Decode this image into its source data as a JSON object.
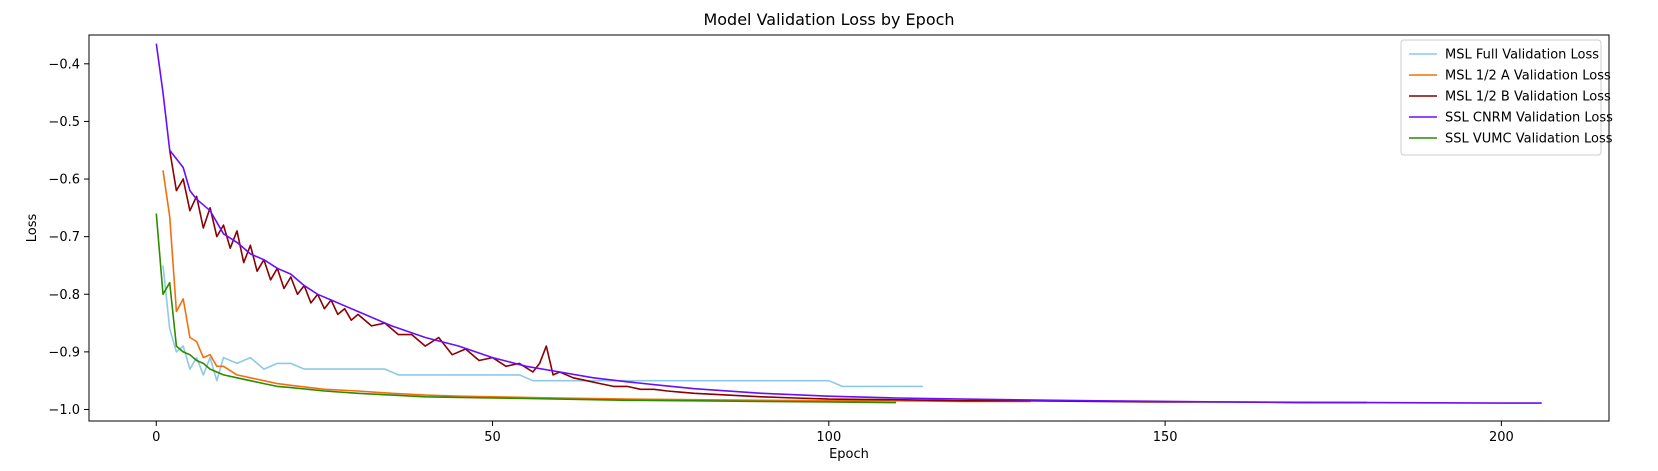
{
  "chart_data": {
    "type": "line",
    "title": "Model Validation Loss by Epoch",
    "xlabel": "Epoch",
    "ylabel": "Loss",
    "xlim": [
      -10,
      216
    ],
    "ylim": [
      -1.02,
      -0.35
    ],
    "xticks": [
      0,
      50,
      100,
      150,
      200
    ],
    "yticks": [
      -1.0,
      -0.9,
      -0.8,
      -0.7,
      -0.6,
      -0.5,
      -0.4
    ],
    "xtick_labels": [
      "0",
      "50",
      "100",
      "150",
      "200"
    ],
    "ytick_labels": [
      "−1.0",
      "−0.9",
      "−0.8",
      "−0.7",
      "−0.6",
      "−0.5",
      "−0.4"
    ],
    "grid": false,
    "legend_position": "top-right",
    "series": [
      {
        "name": "MSL Full Validation Loss",
        "color": "#8ecae6",
        "x": [
          1,
          2,
          3,
          4,
          5,
          6,
          7,
          8,
          9,
          10,
          12,
          14,
          16,
          18,
          20,
          22,
          24,
          26,
          28,
          30,
          32,
          34,
          36,
          38,
          40,
          42,
          44,
          46,
          48,
          50,
          52,
          54,
          56,
          58,
          60,
          62,
          64,
          66,
          68,
          70,
          72,
          74,
          76,
          78,
          80,
          82,
          84,
          86,
          88,
          90,
          92,
          94,
          96,
          98,
          100,
          102,
          104,
          106,
          108,
          110,
          112,
          114
        ],
        "values": [
          -0.75,
          -0.86,
          -0.9,
          -0.89,
          -0.93,
          -0.91,
          -0.94,
          -0.91,
          -0.95,
          -0.91,
          -0.92,
          -0.91,
          -0.93,
          -0.92,
          -0.92,
          -0.93,
          -0.93,
          -0.93,
          -0.93,
          -0.93,
          -0.93,
          -0.93,
          -0.94,
          -0.94,
          -0.94,
          -0.94,
          -0.94,
          -0.94,
          -0.94,
          -0.94,
          -0.94,
          -0.94,
          -0.95,
          -0.95,
          -0.95,
          -0.95,
          -0.95,
          -0.95,
          -0.95,
          -0.95,
          -0.95,
          -0.95,
          -0.95,
          -0.95,
          -0.95,
          -0.95,
          -0.95,
          -0.95,
          -0.95,
          -0.95,
          -0.95,
          -0.95,
          -0.95,
          -0.95,
          -0.95,
          -0.96,
          -0.96,
          -0.96,
          -0.96,
          -0.96,
          -0.96,
          -0.96
        ]
      },
      {
        "name": "MSL 1/2 A Validation Loss",
        "color": "#f07010",
        "x": [
          1,
          2,
          3,
          4,
          5,
          6,
          7,
          8,
          9,
          10,
          12,
          14,
          16,
          18,
          20,
          25,
          30,
          35,
          40,
          45,
          50,
          55,
          60,
          70,
          80,
          90,
          100,
          110,
          120,
          130
        ],
        "values": [
          -0.585,
          -0.665,
          -0.83,
          -0.808,
          -0.875,
          -0.882,
          -0.91,
          -0.905,
          -0.925,
          -0.925,
          -0.94,
          -0.945,
          -0.95,
          -0.955,
          -0.958,
          -0.965,
          -0.968,
          -0.972,
          -0.975,
          -0.977,
          -0.978,
          -0.979,
          -0.98,
          -0.982,
          -0.983,
          -0.984,
          -0.985,
          -0.985,
          -0.986,
          -0.986
        ]
      },
      {
        "name": "MSL 1/2 B Validation Loss",
        "color": "#8b0000",
        "x": [
          2,
          3,
          4,
          5,
          6,
          7,
          8,
          9,
          10,
          11,
          12,
          13,
          14,
          15,
          16,
          17,
          18,
          19,
          20,
          21,
          22,
          23,
          24,
          25,
          26,
          27,
          28,
          29,
          30,
          32,
          34,
          36,
          38,
          40,
          42,
          44,
          46,
          48,
          50,
          52,
          54,
          56,
          57,
          58,
          59,
          60,
          62,
          64,
          66,
          68,
          70,
          72,
          74,
          76,
          78,
          80,
          85,
          90,
          95,
          100,
          110,
          120,
          130,
          140,
          150,
          160,
          170,
          180
        ],
        "values": [
          -0.55,
          -0.62,
          -0.6,
          -0.655,
          -0.63,
          -0.685,
          -0.65,
          -0.7,
          -0.68,
          -0.72,
          -0.69,
          -0.745,
          -0.715,
          -0.76,
          -0.74,
          -0.775,
          -0.755,
          -0.79,
          -0.77,
          -0.8,
          -0.785,
          -0.815,
          -0.8,
          -0.825,
          -0.81,
          -0.835,
          -0.825,
          -0.845,
          -0.835,
          -0.855,
          -0.85,
          -0.87,
          -0.87,
          -0.89,
          -0.875,
          -0.905,
          -0.895,
          -0.915,
          -0.91,
          -0.925,
          -0.92,
          -0.935,
          -0.92,
          -0.89,
          -0.94,
          -0.935,
          -0.945,
          -0.95,
          -0.955,
          -0.96,
          -0.96,
          -0.965,
          -0.965,
          -0.968,
          -0.97,
          -0.972,
          -0.975,
          -0.978,
          -0.98,
          -0.982,
          -0.983,
          -0.985,
          -0.985,
          -0.986,
          -0.987,
          -0.987,
          -0.988,
          -0.988
        ]
      },
      {
        "name": "SSL CNRM Validation Loss",
        "color": "#6a0dff",
        "x": [
          0,
          1,
          2,
          4,
          5,
          6,
          8,
          10,
          12,
          14,
          16,
          18,
          20,
          22,
          24,
          26,
          28,
          30,
          35,
          40,
          45,
          50,
          55,
          60,
          65,
          70,
          75,
          80,
          90,
          100,
          110,
          120,
          140,
          160,
          180,
          200,
          206
        ],
        "values": [
          -0.365,
          -0.45,
          -0.55,
          -0.58,
          -0.62,
          -0.635,
          -0.655,
          -0.695,
          -0.71,
          -0.73,
          -0.74,
          -0.755,
          -0.765,
          -0.785,
          -0.8,
          -0.81,
          -0.82,
          -0.83,
          -0.855,
          -0.875,
          -0.89,
          -0.91,
          -0.925,
          -0.935,
          -0.945,
          -0.952,
          -0.958,
          -0.964,
          -0.972,
          -0.977,
          -0.98,
          -0.982,
          -0.985,
          -0.987,
          -0.988,
          -0.989,
          -0.989
        ]
      },
      {
        "name": "SSL VUMC Validation Loss",
        "color": "#2e8b00",
        "x": [
          0,
          1,
          2,
          3,
          4,
          5,
          6,
          7,
          8,
          9,
          10,
          12,
          14,
          16,
          18,
          20,
          25,
          30,
          35,
          40,
          45,
          50,
          55,
          60,
          70,
          80,
          90,
          100,
          110
        ],
        "values": [
          -0.66,
          -0.8,
          -0.78,
          -0.89,
          -0.9,
          -0.905,
          -0.915,
          -0.92,
          -0.93,
          -0.935,
          -0.94,
          -0.945,
          -0.95,
          -0.955,
          -0.96,
          -0.962,
          -0.968,
          -0.972,
          -0.975,
          -0.978,
          -0.979,
          -0.98,
          -0.981,
          -0.982,
          -0.984,
          -0.985,
          -0.986,
          -0.987,
          -0.988
        ]
      }
    ]
  }
}
